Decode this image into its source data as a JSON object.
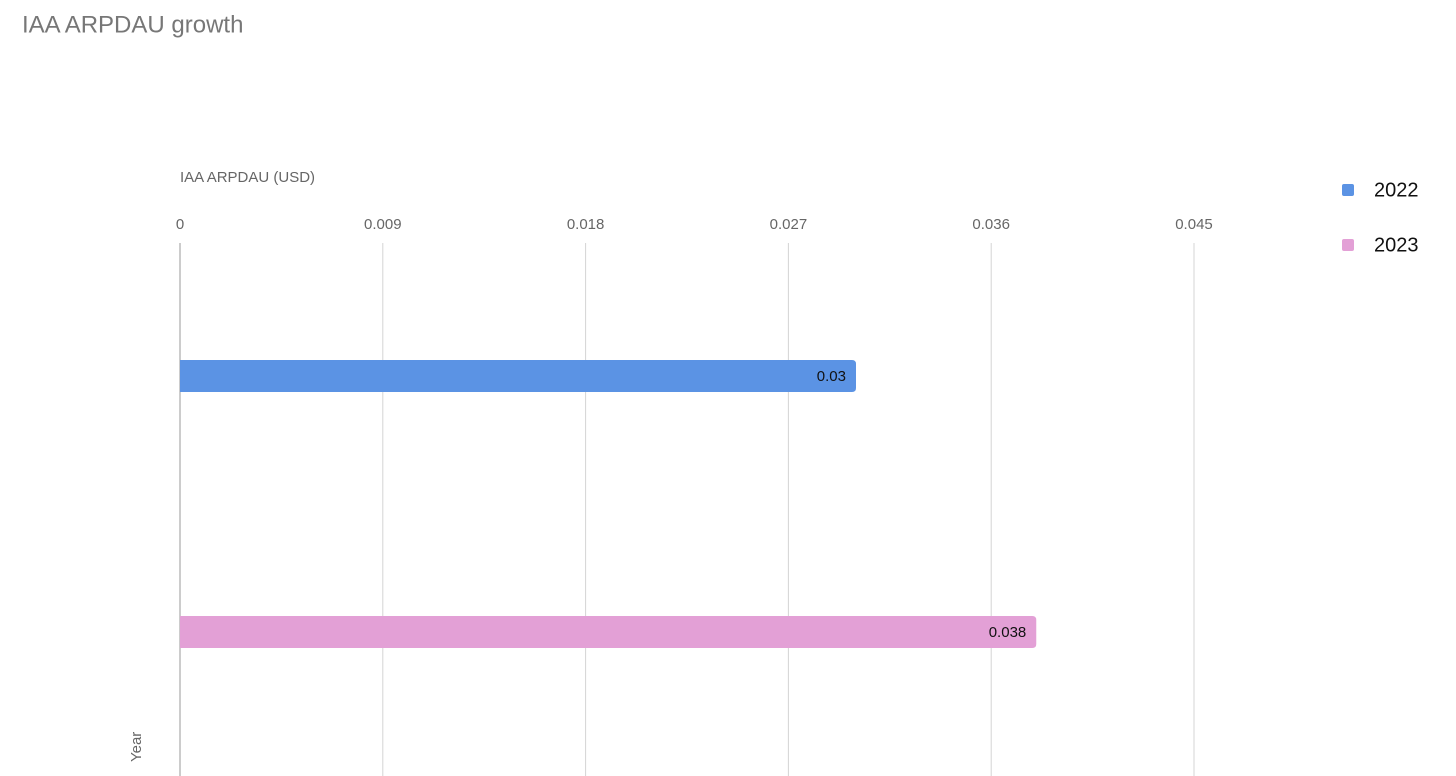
{
  "chart_data": {
    "type": "hbar",
    "title": "IAA ARPDAU growth",
    "x_label": "IAA ARPDAU (USD)",
    "y_label": "Year",
    "categories": [
      null,
      null
    ],
    "series": [
      {
        "name": "2022",
        "color": "#5b93e4",
        "values": [
          0.03,
          null
        ]
      },
      {
        "name": "2023",
        "color": "#e3a0d6",
        "values": [
          null,
          0.038
        ]
      }
    ],
    "xlim": [
      0,
      0.045
    ],
    "xticks": [
      0,
      0.009,
      0.018,
      0.027,
      0.036,
      0.045
    ],
    "grid": true,
    "legend": "right"
  }
}
